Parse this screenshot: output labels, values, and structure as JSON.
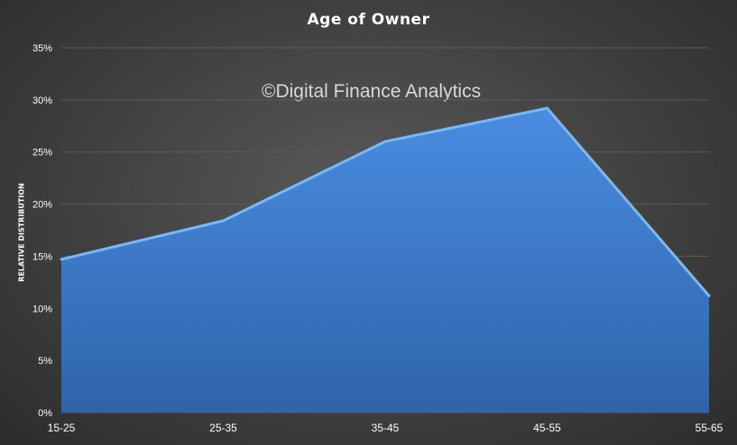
{
  "chart_data": {
    "type": "area",
    "title": "Age of Owner",
    "xlabel": "",
    "ylabel": "RELATIVE DISTRIBUTION",
    "categories": [
      "15-25",
      "25-35",
      "35-45",
      "45-55",
      "55-65"
    ],
    "values": [
      14.7,
      18.4,
      26.0,
      29.2,
      11.2
    ],
    "ylim": [
      0,
      35
    ],
    "yticks": [
      "0%",
      "5%",
      "10%",
      "15%",
      "20%",
      "25%",
      "30%",
      "35%"
    ],
    "ytick_values": [
      0,
      5,
      10,
      15,
      20,
      25,
      30,
      35
    ],
    "grid": true,
    "legend": "none",
    "annotation": "©Digital Finance Analytics",
    "colors": {
      "fill": "#3f7fd0",
      "edge": "#7ab8f5",
      "grid": "#5c5c5c",
      "text": "#ffffff"
    }
  }
}
